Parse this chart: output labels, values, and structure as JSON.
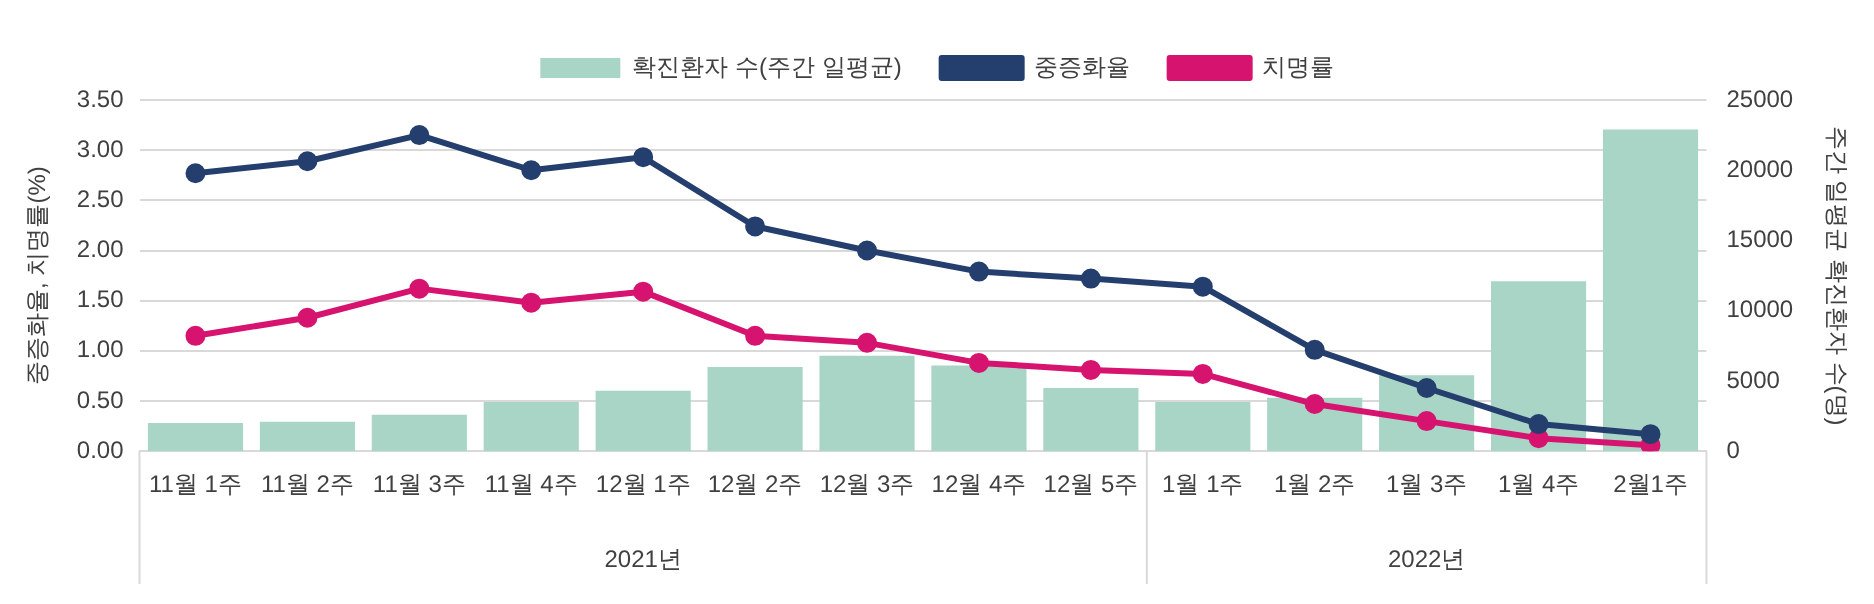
{
  "chart_data": {
    "type": "bar",
    "categories": [
      "11월 1주",
      "11월 2주",
      "11월 3주",
      "11월 4주",
      "12월 1주",
      "12월 2주",
      "12월 3주",
      "12월 4주",
      "12월 5주",
      "1월 1주",
      "1월 2주",
      "1월 3주",
      "1월 4주",
      "2월1주"
    ],
    "series": [
      {
        "name": "확진환자 수(주간 일평균)",
        "axis": "y2",
        "color": "#a8d5c6",
        "values": [
          2000,
          2100,
          2600,
          3500,
          4300,
          6000,
          6800,
          6100,
          4500,
          3500,
          3800,
          5400,
          12100,
          22900
        ]
      },
      {
        "name": "중증화율",
        "type": "line",
        "color": "#243f6e",
        "values": [
          2.77,
          2.89,
          3.15,
          2.8,
          2.93,
          2.24,
          2.0,
          1.79,
          1.72,
          1.64,
          1.01,
          0.63,
          0.27,
          0.17
        ]
      },
      {
        "name": "치명률",
        "type": "line",
        "color": "#d6136e",
        "values": [
          1.15,
          1.33,
          1.62,
          1.48,
          1.59,
          1.15,
          1.08,
          0.88,
          0.81,
          0.77,
          0.47,
          0.3,
          0.13,
          0.06
        ]
      }
    ],
    "ylabel": "중증화율, 치명률(%)",
    "y2label": "주간 일평균 확진환자 수(명)",
    "ylim": [
      0,
      3.5
    ],
    "yticks": [
      {
        "value": 0,
        "label": "0.00"
      },
      {
        "value": 0.5,
        "label": "0.50"
      },
      {
        "value": 1,
        "label": "1.00"
      },
      {
        "value": 1.5,
        "label": "1.50"
      },
      {
        "value": 2,
        "label": "2.00"
      },
      {
        "value": 2.5,
        "label": "2.50"
      },
      {
        "value": 3,
        "label": "3.00"
      },
      {
        "value": 3.5,
        "label": "3.50"
      }
    ],
    "y2lim": [
      0,
      25000
    ],
    "y2ticks": [
      0,
      5000,
      10000,
      15000,
      20000,
      25000
    ],
    "annotations": [
      "2021년",
      "2022년"
    ],
    "grid": "y",
    "legend": "top",
    "marker": "circle",
    "line_style": "solid"
  }
}
